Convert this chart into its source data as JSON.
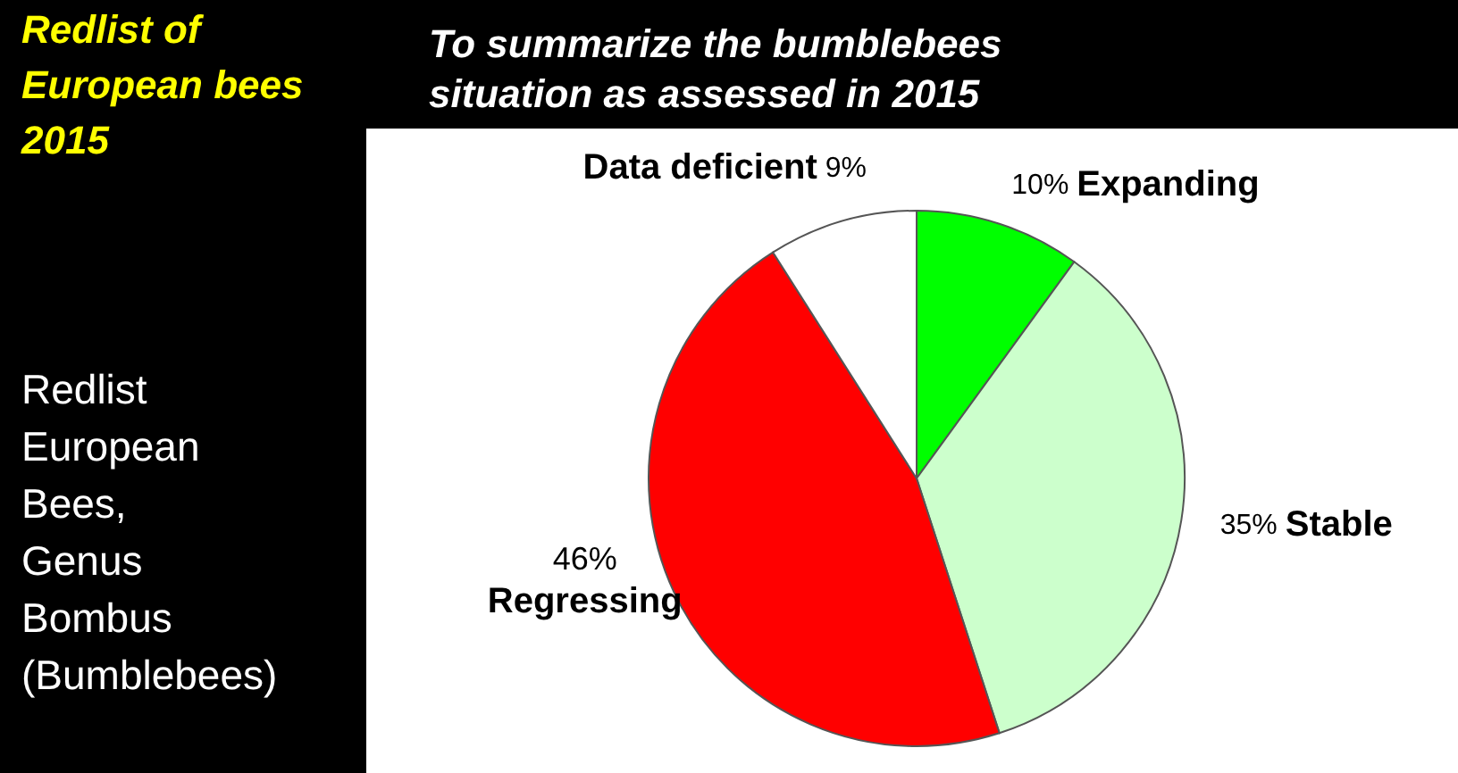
{
  "chart_data": {
    "type": "pie",
    "title": "Redlist of European bees 2015",
    "subtitle": "To summarize the bumblebees situation as assessed in 2015",
    "annotations": [
      "Redlist European Bees, Genus Bombus (Bumblebees)"
    ],
    "categories": [
      "Expanding",
      "Stable",
      "Regressing",
      "Data deficient"
    ],
    "values": [
      10,
      35,
      46,
      9
    ],
    "value_labels": [
      "10%",
      "35%",
      "46%",
      "9%"
    ],
    "colors": [
      "#00ff00",
      "#ccffcc",
      "#ff0000",
      "#ffffff"
    ]
  }
}
